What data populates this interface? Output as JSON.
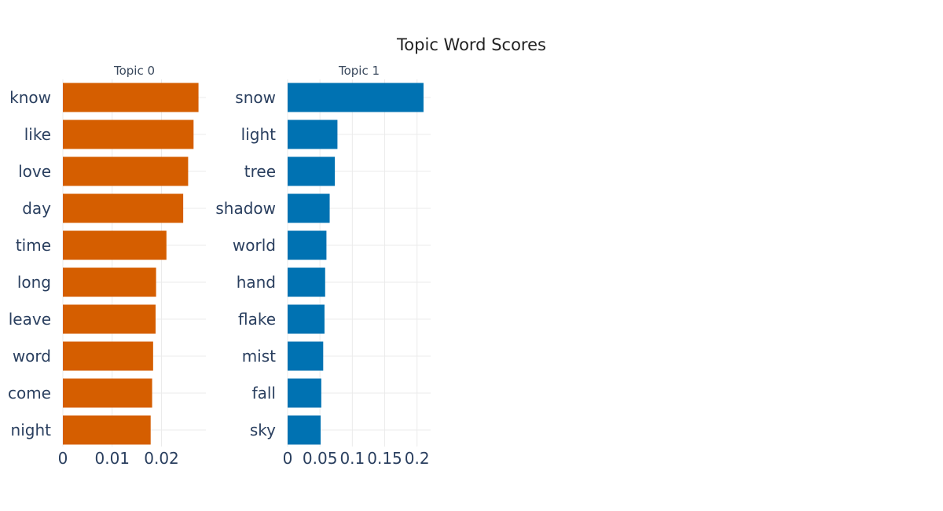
{
  "chart_data": {
    "type": "bar",
    "orientation": "horizontal",
    "title": "Topic Word Scores",
    "grid": true,
    "legend": "none",
    "panels": [
      {
        "subtitle": "Topic 0",
        "color": "#D55E00",
        "categories": [
          "know",
          "like",
          "love",
          "day",
          "time",
          "long",
          "leave",
          "word",
          "come",
          "night"
        ],
        "values": [
          0.0275,
          0.0265,
          0.0254,
          0.0244,
          0.021,
          0.0189,
          0.0188,
          0.0183,
          0.0181,
          0.0178
        ],
        "xlim": [
          0,
          0.029
        ],
        "xticks": [
          0,
          0.01,
          0.02
        ],
        "xtick_labels": [
          "0",
          "0.01",
          "0.02"
        ]
      },
      {
        "subtitle": "Topic 1",
        "color": "#0072B2",
        "categories": [
          "snow",
          "light",
          "tree",
          "shadow",
          "world",
          "hand",
          "flake",
          "mist",
          "fall",
          "sky"
        ],
        "values": [
          0.21,
          0.077,
          0.073,
          0.065,
          0.06,
          0.058,
          0.057,
          0.055,
          0.052,
          0.051
        ],
        "xlim": [
          0,
          0.221
        ],
        "xticks": [
          0,
          0.05,
          0.1,
          0.15,
          0.2
        ],
        "xtick_labels": [
          "0",
          "0.05",
          "0.1",
          "0.15",
          "0.2"
        ]
      }
    ]
  }
}
